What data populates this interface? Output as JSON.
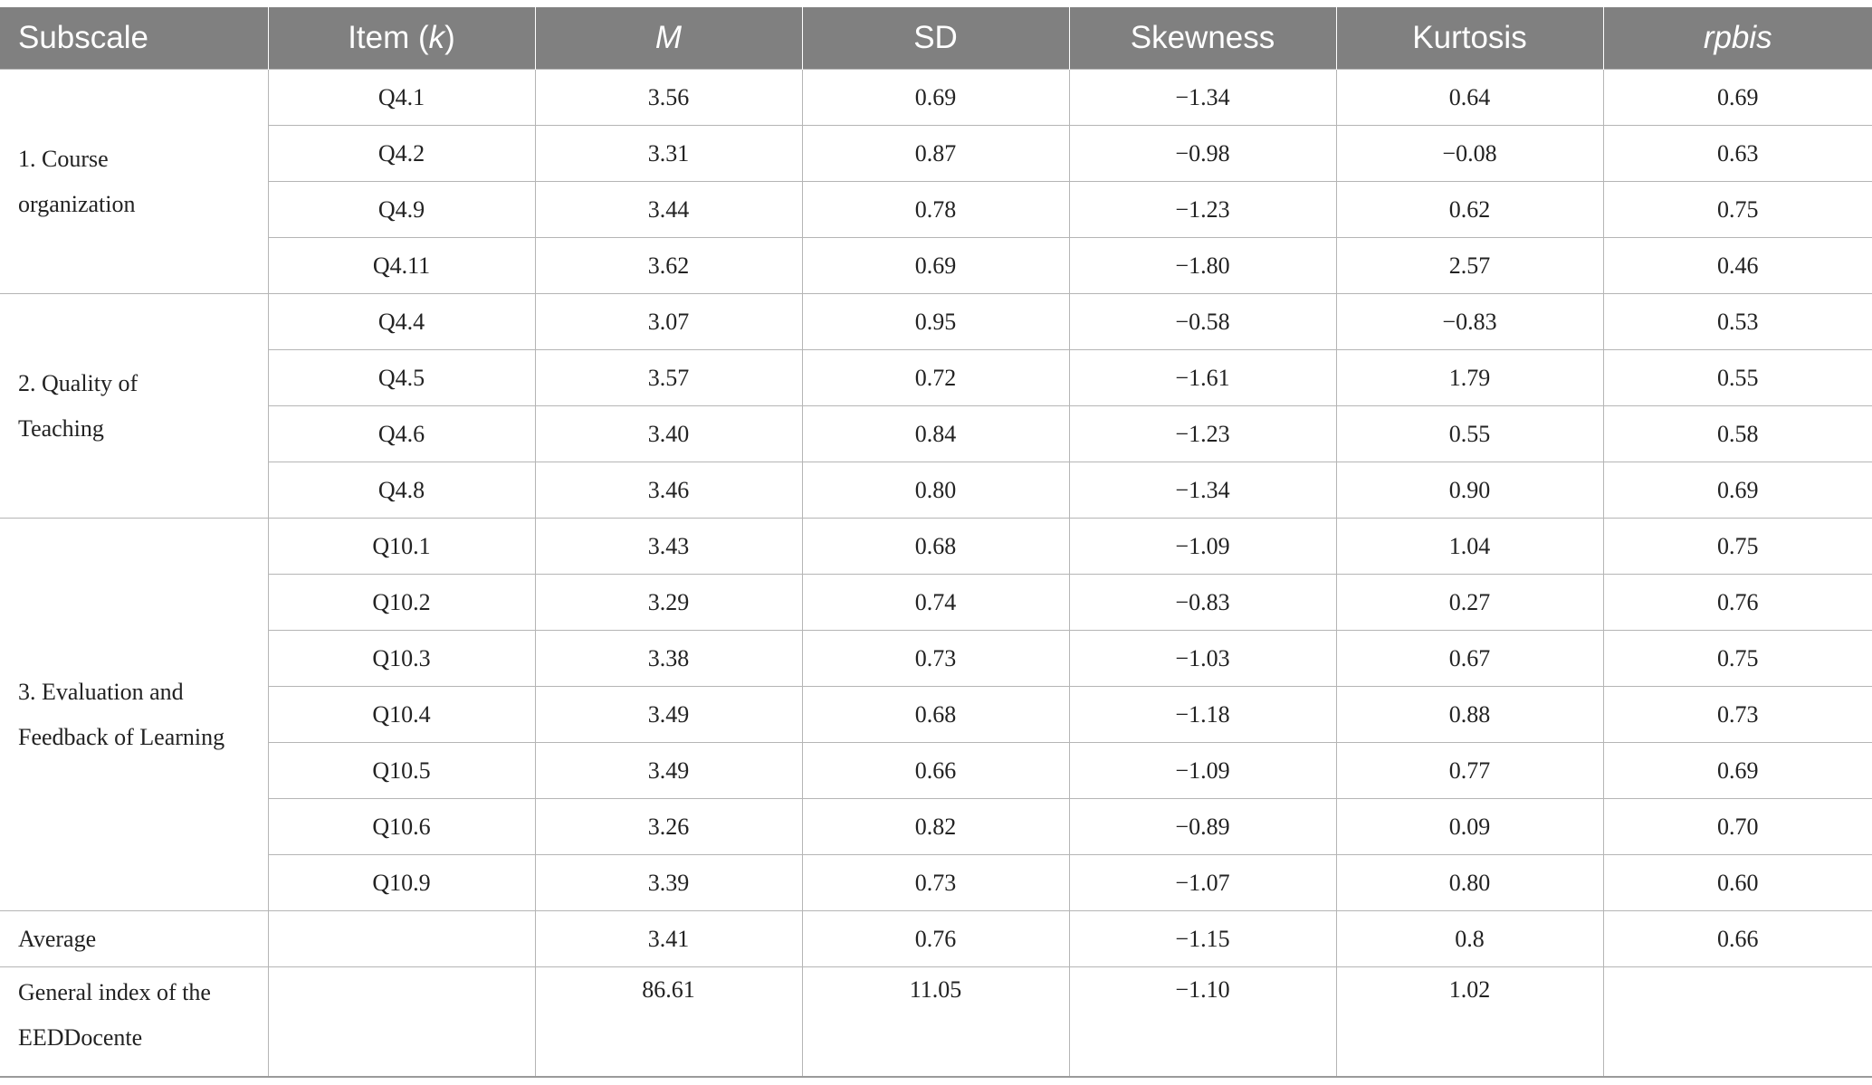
{
  "columns": {
    "subscale": "Subscale",
    "item_prefix": "Item (",
    "item_k": "k",
    "item_suffix": ")",
    "m": "M",
    "sd": "SD",
    "skewness": "Skewness",
    "kurtosis": "Kurtosis",
    "rpbis": "rpbis"
  },
  "groups": [
    {
      "label_line1": "1. Course",
      "label_line2": "organization",
      "rows": [
        {
          "item": "Q4.1",
          "m": "3.56",
          "sd": "0.69",
          "skew": "−1.34",
          "kurt": "0.64",
          "rpbis": "0.69"
        },
        {
          "item": "Q4.2",
          "m": "3.31",
          "sd": "0.87",
          "skew": "−0.98",
          "kurt": "−0.08",
          "rpbis": "0.63"
        },
        {
          "item": "Q4.9",
          "m": "3.44",
          "sd": "0.78",
          "skew": "−1.23",
          "kurt": "0.62",
          "rpbis": "0.75"
        },
        {
          "item": "Q4.11",
          "m": "3.62",
          "sd": "0.69",
          "skew": "−1.80",
          "kurt": "2.57",
          "rpbis": "0.46"
        }
      ]
    },
    {
      "label_line1": "2. Quality of",
      "label_line2": "Teaching",
      "rows": [
        {
          "item": "Q4.4",
          "m": "3.07",
          "sd": "0.95",
          "skew": "−0.58",
          "kurt": "−0.83",
          "rpbis": "0.53"
        },
        {
          "item": "Q4.5",
          "m": "3.57",
          "sd": "0.72",
          "skew": "−1.61",
          "kurt": "1.79",
          "rpbis": "0.55"
        },
        {
          "item": "Q4.6",
          "m": "3.40",
          "sd": "0.84",
          "skew": "−1.23",
          "kurt": "0.55",
          "rpbis": "0.58"
        },
        {
          "item": "Q4.8",
          "m": "3.46",
          "sd": "0.80",
          "skew": "−1.34",
          "kurt": "0.90",
          "rpbis": "0.69"
        }
      ]
    },
    {
      "label_line1": "3. Evaluation and",
      "label_line2": "Feedback of Learning",
      "rows": [
        {
          "item": "Q10.1",
          "m": "3.43",
          "sd": "0.68",
          "skew": "−1.09",
          "kurt": "1.04",
          "rpbis": "0.75"
        },
        {
          "item": "Q10.2",
          "m": "3.29",
          "sd": "0.74",
          "skew": "−0.83",
          "kurt": "0.27",
          "rpbis": "0.76"
        },
        {
          "item": "Q10.3",
          "m": "3.38",
          "sd": "0.73",
          "skew": "−1.03",
          "kurt": "0.67",
          "rpbis": "0.75"
        },
        {
          "item": "Q10.4",
          "m": "3.49",
          "sd": "0.68",
          "skew": "−1.18",
          "kurt": "0.88",
          "rpbis": "0.73"
        },
        {
          "item": "Q10.5",
          "m": "3.49",
          "sd": "0.66",
          "skew": "−1.09",
          "kurt": "0.77",
          "rpbis": "0.69"
        },
        {
          "item": "Q10.6",
          "m": "3.26",
          "sd": "0.82",
          "skew": "−0.89",
          "kurt": "0.09",
          "rpbis": "0.70"
        },
        {
          "item": "Q10.9",
          "m": "3.39",
          "sd": "0.73",
          "skew": "−1.07",
          "kurt": "0.80",
          "rpbis": "0.60"
        }
      ]
    }
  ],
  "average": {
    "label": "Average",
    "item": "",
    "m": "3.41",
    "sd": "0.76",
    "skew": "−1.15",
    "kurt": "0.8",
    "rpbis": "0.66"
  },
  "general": {
    "label_line1": "General index of the",
    "label_line2": "EEDDocente",
    "item": "",
    "m": "86.61",
    "sd": "11.05",
    "skew": "−1.10",
    "kurt": "1.02",
    "rpbis": ""
  },
  "colors": {
    "header_bg": "#808080",
    "header_text": "#ffffff",
    "grid": "#b5b5b5"
  }
}
